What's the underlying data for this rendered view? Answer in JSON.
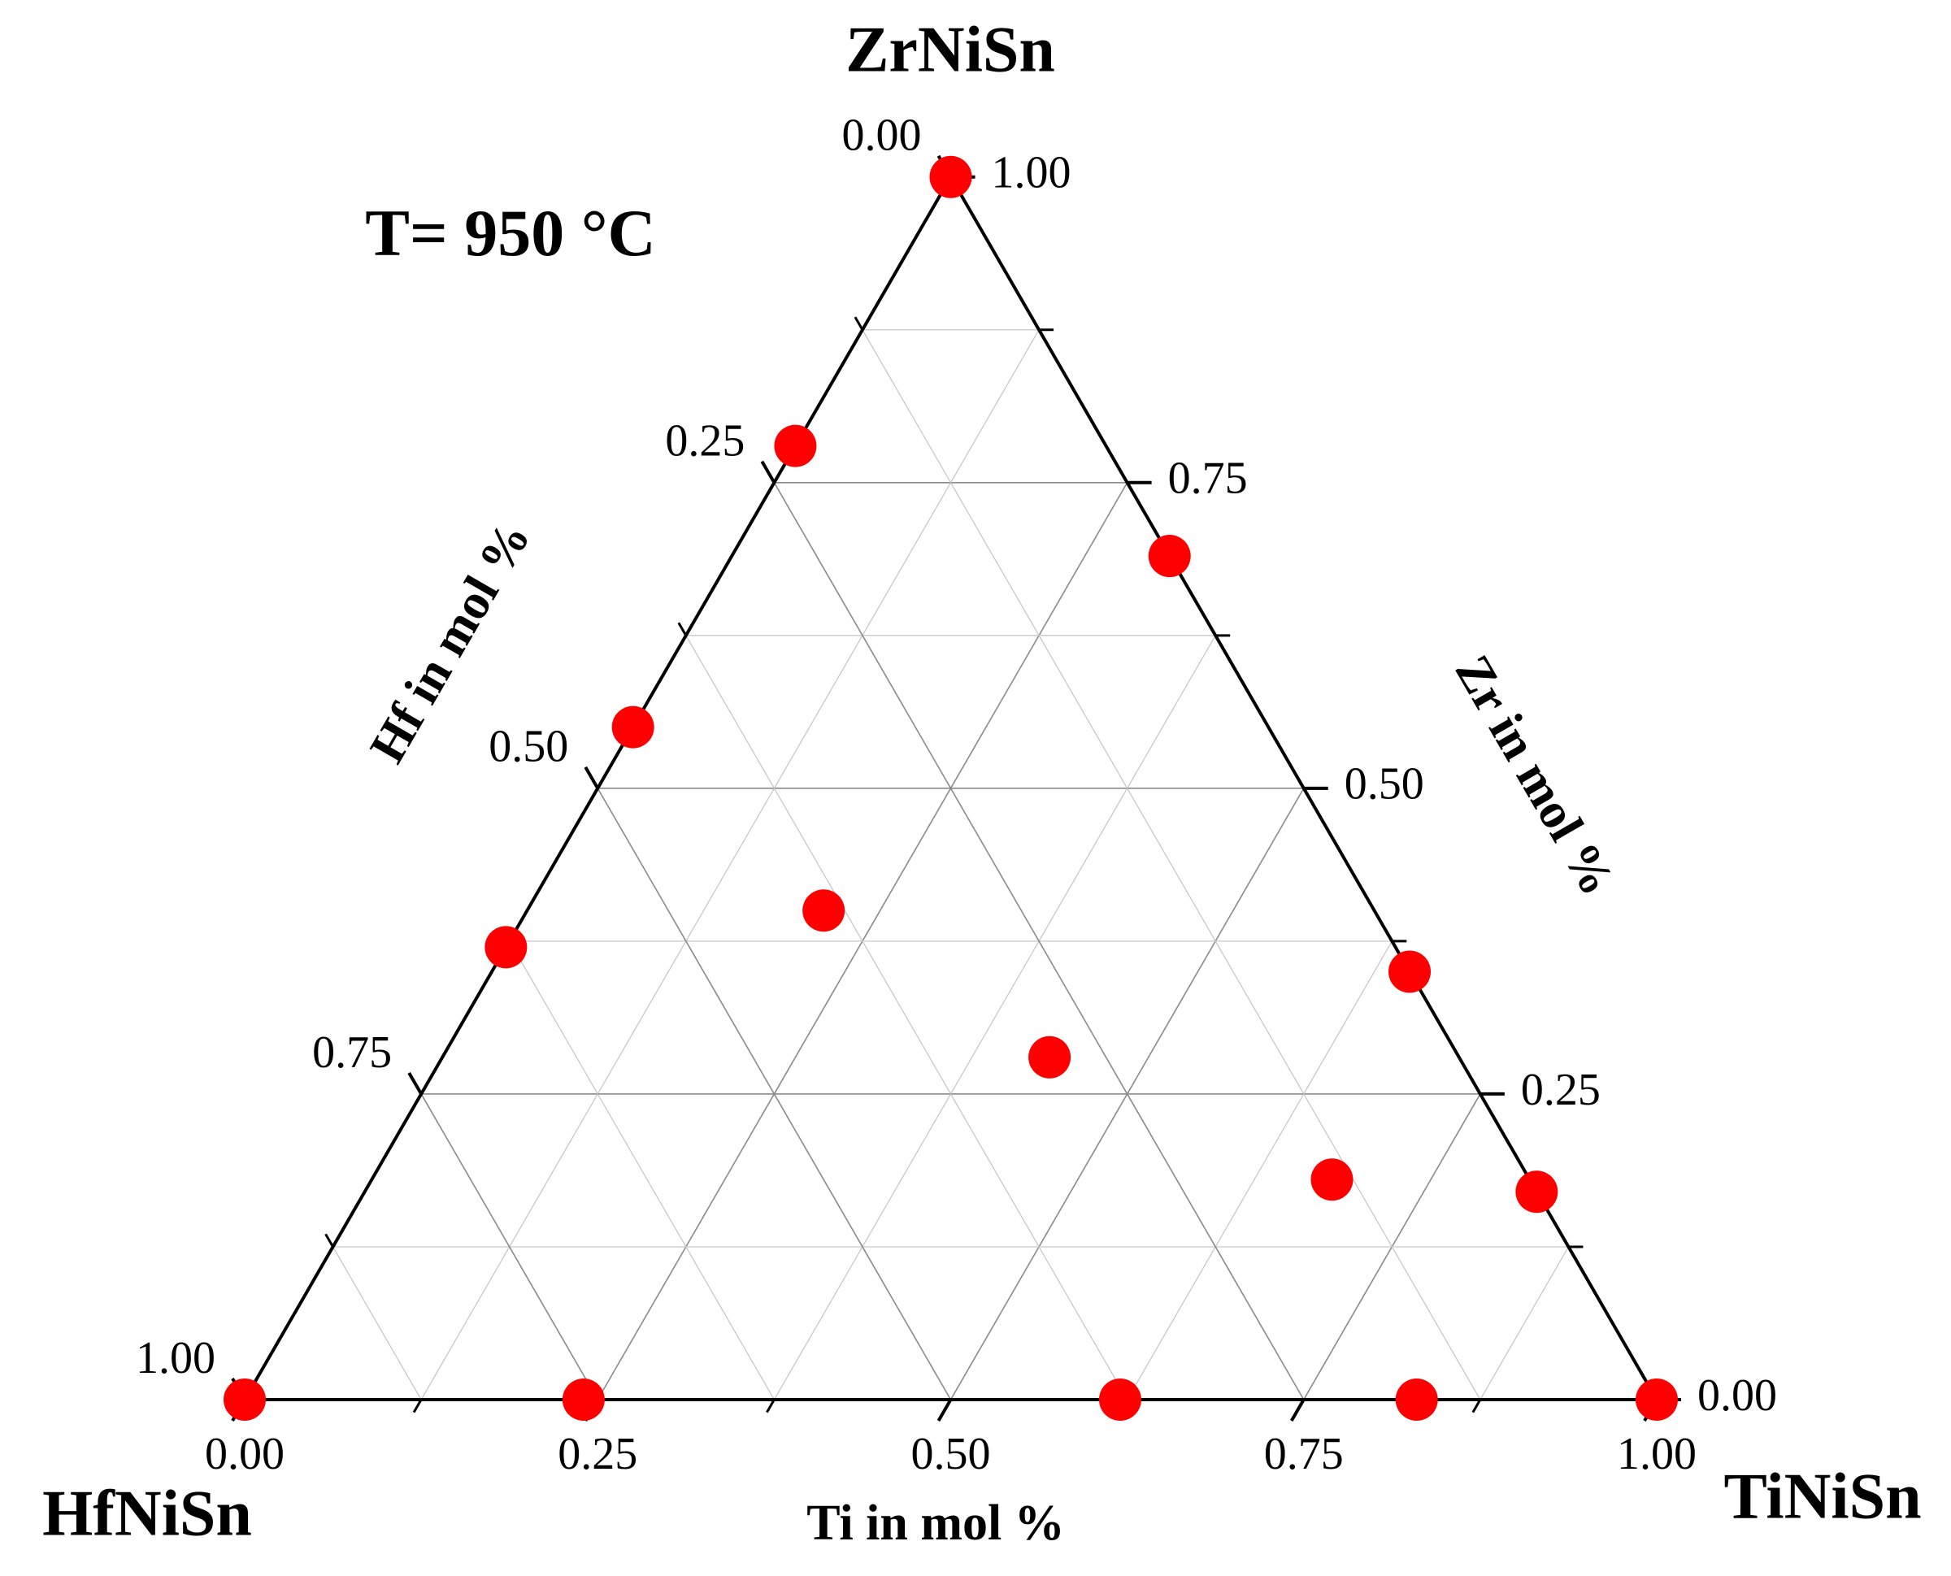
{
  "chart_data": {
    "type": "ternary",
    "title": "T= 950 °C",
    "vertices": {
      "top": "ZrNiSn",
      "left": "HfNiSn",
      "right": "TiNiSn"
    },
    "ti_axis": {
      "title": "Ti in mol %",
      "ticks": [
        {
          "value": 0,
          "label": "0.00"
        },
        {
          "value": 0.25,
          "label": "0.25"
        },
        {
          "value": 0.5,
          "label": "0.50"
        },
        {
          "value": 0.75,
          "label": "0.75"
        },
        {
          "value": 1,
          "label": "1.00"
        }
      ]
    },
    "zr_axis": {
      "title": "Zr in mol %",
      "ticks": [
        {
          "value": 0,
          "label": "0.00"
        },
        {
          "value": 0.25,
          "label": "0.25"
        },
        {
          "value": 0.5,
          "label": "0.50"
        },
        {
          "value": 0.75,
          "label": "0.75"
        },
        {
          "value": 1,
          "label": "1.00"
        }
      ]
    },
    "hf_axis": {
      "title": "Hf in mol %",
      "ticks": [
        {
          "value": 0,
          "label": "0.00"
        },
        {
          "value": 0.25,
          "label": "0.25"
        },
        {
          "value": 0.5,
          "label": "0.50"
        },
        {
          "value": 0.75,
          "label": "0.75"
        },
        {
          "value": 1,
          "label": "1.00"
        }
      ]
    },
    "minor_ticks": [
      0.125,
      0.375,
      0.625,
      0.875
    ],
    "grid": true,
    "color": "#ff0000",
    "points": {
      "ti": [
        0,
        0,
        0,
        0,
        0,
        0.24,
        0.62,
        0.83,
        1,
        0.31,
        0.65,
        0.83,
        0.21,
        0.43,
        0.68
      ],
      "zr": [
        1,
        0.78,
        0.55,
        0.37,
        0,
        0,
        0,
        0,
        0,
        0.69,
        0.35,
        0.17,
        0.4,
        0.28,
        0.18
      ],
      "hf": [
        0,
        0.22,
        0.45,
        0.63,
        1,
        0.76,
        0.38,
        0.17,
        0,
        0,
        0,
        0,
        0.39,
        0.29,
        0.14
      ]
    }
  }
}
